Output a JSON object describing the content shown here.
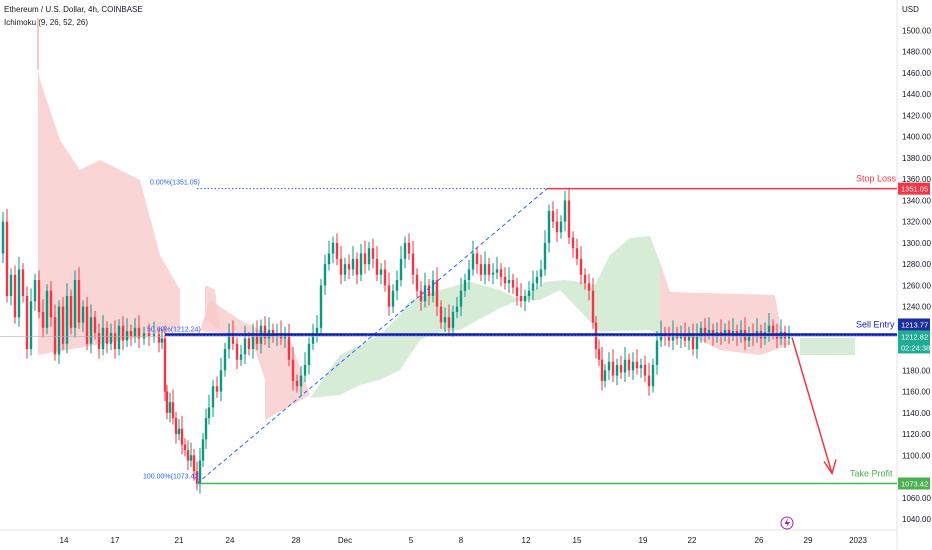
{
  "header": {
    "symbol_line": "Ethereum / U.S. Dollar, 4h, COINBASE",
    "indicator_line": "Ichimoku (9, 26, 52, 26)"
  },
  "chart_data": {
    "type": "candlestick",
    "currency_label": "USD",
    "y_ticks": [
      1040,
      1060,
      1080,
      1100,
      1120,
      1140,
      1160,
      1180,
      1200,
      1220,
      1240,
      1260,
      1280,
      1300,
      1320,
      1340,
      1360,
      1380,
      1400,
      1420,
      1440,
      1460,
      1480,
      1500
    ],
    "ylim": [
      1028,
      1532
    ],
    "x_ticks": [
      "14",
      "17",
      "21",
      "24",
      "28",
      "Dec",
      "5",
      "8",
      "12",
      "15",
      "19",
      "22",
      "26",
      "29",
      "2023"
    ],
    "levels": {
      "stop_loss": {
        "label": "Stop Loss",
        "value": 1351.05,
        "value_text": "1351.05",
        "color": "#f23645"
      },
      "sell_entry": {
        "label": "Sell Entry",
        "value": 1213.77,
        "value_text": "1213.77",
        "color": "#0d1fb5"
      },
      "take_profit": {
        "label": "Take Profit",
        "value": 1073.42,
        "value_text": "1073.42",
        "color": "#22ab94"
      },
      "last_price": {
        "value": 1212.82,
        "value_text": "1212.82",
        "timer": "02:24:38",
        "color": "#22ab94"
      }
    },
    "fibonacci": {
      "high_label": "0.00%(1351.05)",
      "mid_label": "50.00%(1212.24)",
      "low_label": "100.00%(1073.42)"
    },
    "price_path": [
      [
        0,
        1290
      ],
      [
        4,
        1320
      ],
      [
        8,
        1250
      ],
      [
        12,
        1270
      ],
      [
        16,
        1230
      ],
      [
        20,
        1275
      ],
      [
        24,
        1250
      ],
      [
        28,
        1200
      ],
      [
        32,
        1245
      ],
      [
        36,
        1265
      ],
      [
        40,
        1235
      ],
      [
        44,
        1220
      ],
      [
        48,
        1255
      ],
      [
        52,
        1230
      ],
      [
        56,
        1195
      ],
      [
        60,
        1240
      ],
      [
        64,
        1205
      ],
      [
        68,
        1250
      ],
      [
        72,
        1220
      ],
      [
        76,
        1265
      ],
      [
        80,
        1225
      ],
      [
        84,
        1240
      ],
      [
        88,
        1205
      ],
      [
        92,
        1230
      ],
      [
        96,
        1215
      ],
      [
        100,
        1200
      ],
      [
        104,
        1220
      ],
      [
        108,
        1205
      ],
      [
        112,
        1215
      ],
      [
        116,
        1200
      ],
      [
        120,
        1222
      ],
      [
        124,
        1208
      ],
      [
        128,
        1217
      ],
      [
        132,
        1212
      ],
      [
        136,
        1220
      ],
      [
        140,
        1210
      ],
      [
        145,
        1215
      ],
      [
        150,
        1212
      ],
      [
        155,
        1214
      ],
      [
        160,
        1206
      ],
      [
        163,
        1210
      ],
      [
        166,
        1160
      ],
      [
        168,
        1140
      ],
      [
        171,
        1150
      ],
      [
        174,
        1135
      ],
      [
        177,
        1120
      ],
      [
        180,
        1125
      ],
      [
        183,
        1110
      ],
      [
        186,
        1105
      ],
      [
        189,
        1095
      ],
      [
        192,
        1100
      ],
      [
        195,
        1085
      ],
      [
        198,
        1073
      ],
      [
        201,
        1095
      ],
      [
        204,
        1115
      ],
      [
        207,
        1135
      ],
      [
        210,
        1145
      ],
      [
        214,
        1165
      ],
      [
        218,
        1160
      ],
      [
        222,
        1180
      ],
      [
        226,
        1200
      ],
      [
        230,
        1215
      ],
      [
        234,
        1205
      ],
      [
        238,
        1190
      ],
      [
        242,
        1195
      ],
      [
        246,
        1210
      ],
      [
        250,
        1200
      ],
      [
        254,
        1215
      ],
      [
        258,
        1205
      ],
      [
        262,
        1222
      ],
      [
        266,
        1210
      ],
      [
        270,
        1218
      ],
      [
        274,
        1212
      ],
      [
        278,
        1215
      ],
      [
        282,
        1210
      ],
      [
        286,
        1215
      ],
      [
        290,
        1190
      ],
      [
        294,
        1170
      ],
      [
        298,
        1165
      ],
      [
        302,
        1175
      ],
      [
        306,
        1185
      ],
      [
        310,
        1205
      ],
      [
        314,
        1215
      ],
      [
        318,
        1220
      ],
      [
        322,
        1260
      ],
      [
        326,
        1280
      ],
      [
        330,
        1290
      ],
      [
        334,
        1300
      ],
      [
        338,
        1285
      ],
      [
        342,
        1270
      ],
      [
        346,
        1280
      ],
      [
        350,
        1275
      ],
      [
        354,
        1285
      ],
      [
        358,
        1270
      ],
      [
        362,
        1290
      ],
      [
        366,
        1280
      ],
      [
        370,
        1295
      ],
      [
        374,
        1285
      ],
      [
        378,
        1270
      ],
      [
        382,
        1275
      ],
      [
        386,
        1260
      ],
      [
        390,
        1240
      ],
      [
        394,
        1255
      ],
      [
        398,
        1265
      ],
      [
        402,
        1285
      ],
      [
        406,
        1300
      ],
      [
        410,
        1290
      ],
      [
        414,
        1270
      ],
      [
        418,
        1255
      ],
      [
        422,
        1245
      ],
      [
        426,
        1260
      ],
      [
        430,
        1250
      ],
      [
        434,
        1265
      ],
      [
        438,
        1240
      ],
      [
        442,
        1225
      ],
      [
        446,
        1230
      ],
      [
        450,
        1220
      ],
      [
        454,
        1235
      ],
      [
        458,
        1240
      ],
      [
        462,
        1255
      ],
      [
        466,
        1265
      ],
      [
        470,
        1275
      ],
      [
        474,
        1290
      ],
      [
        478,
        1280
      ],
      [
        482,
        1270
      ],
      [
        486,
        1280
      ],
      [
        490,
        1270
      ],
      [
        494,
        1272
      ],
      [
        498,
        1275
      ],
      [
        502,
        1268
      ],
      [
        506,
        1262
      ],
      [
        510,
        1265
      ],
      [
        514,
        1258
      ],
      [
        518,
        1250
      ],
      [
        522,
        1245
      ],
      [
        526,
        1250
      ],
      [
        530,
        1255
      ],
      [
        534,
        1262
      ],
      [
        538,
        1268
      ],
      [
        542,
        1275
      ],
      [
        546,
        1300
      ],
      [
        550,
        1330
      ],
      [
        554,
        1320
      ],
      [
        558,
        1310
      ],
      [
        562,
        1320
      ],
      [
        566,
        1340
      ],
      [
        570,
        1305
      ],
      [
        574,
        1295
      ],
      [
        578,
        1285
      ],
      [
        582,
        1270
      ],
      [
        586,
        1262
      ],
      [
        590,
        1255
      ],
      [
        594,
        1225
      ],
      [
        597,
        1200
      ],
      [
        600,
        1190
      ],
      [
        603,
        1170
      ],
      [
        606,
        1180
      ],
      [
        610,
        1188
      ],
      [
        614,
        1175
      ],
      [
        618,
        1185
      ],
      [
        622,
        1178
      ],
      [
        626,
        1190
      ],
      [
        630,
        1180
      ],
      [
        634,
        1188
      ],
      [
        638,
        1182
      ],
      [
        642,
        1185
      ],
      [
        646,
        1175
      ],
      [
        650,
        1165
      ],
      [
        654,
        1185
      ],
      [
        658,
        1208
      ],
      [
        662,
        1215
      ],
      [
        666,
        1212
      ],
      [
        670,
        1208
      ],
      [
        674,
        1215
      ],
      [
        678,
        1210
      ],
      [
        682,
        1213
      ],
      [
        686,
        1208
      ],
      [
        690,
        1215
      ],
      [
        694,
        1200
      ],
      [
        698,
        1212
      ],
      [
        702,
        1220
      ],
      [
        706,
        1215
      ],
      [
        710,
        1218
      ],
      [
        714,
        1212
      ],
      [
        718,
        1216
      ],
      [
        722,
        1213
      ],
      [
        726,
        1218
      ],
      [
        730,
        1214
      ],
      [
        734,
        1217
      ],
      [
        738,
        1212
      ],
      [
        742,
        1218
      ],
      [
        746,
        1208
      ],
      [
        750,
        1215
      ],
      [
        754,
        1212
      ],
      [
        758,
        1217
      ],
      [
        762,
        1210
      ],
      [
        766,
        1216
      ],
      [
        770,
        1222
      ],
      [
        774,
        1215
      ],
      [
        778,
        1210
      ],
      [
        782,
        1216
      ],
      [
        786,
        1210
      ],
      [
        790,
        1213
      ]
    ]
  }
}
